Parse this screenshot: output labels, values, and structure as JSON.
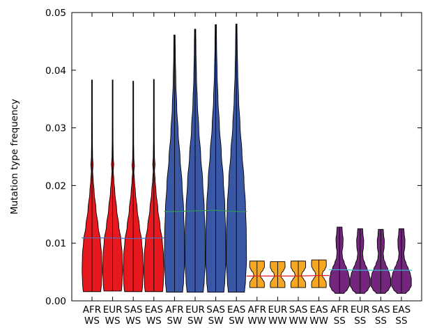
{
  "chart_data": {
    "type": "violin",
    "title": "",
    "xlabel": "",
    "ylabel": "Mutation type frequency",
    "ylim": [
      0,
      0.05
    ],
    "yticks": [
      0.0,
      0.01,
      0.02,
      0.03,
      0.04,
      0.05
    ],
    "ytick_labels": [
      "0.00",
      "0.01",
      "0.02",
      "0.03",
      "0.04",
      "0.05"
    ],
    "grid": false,
    "legend": "none",
    "groups": [
      {
        "mutation_type": "WS",
        "fill_color": "#e8191e",
        "mean_line_color": "#4a6fc4"
      },
      {
        "mutation_type": "SW",
        "fill_color": "#3a57a5",
        "mean_line_color": "#2f9a57"
      },
      {
        "mutation_type": "WW",
        "fill_color": "#f5a623",
        "mean_line_color": "#e8191e"
      },
      {
        "mutation_type": "SS",
        "fill_color": "#74257e",
        "mean_line_color": "#36b8d8"
      }
    ],
    "categories": [
      {
        "population": "AFR",
        "mutation_type": "WS",
        "group": 0,
        "min": 0.0016,
        "max": 0.0383,
        "mean": 0.0109
      },
      {
        "population": "EUR",
        "mutation_type": "WS",
        "group": 0,
        "min": 0.0017,
        "max": 0.0383,
        "mean": 0.0109
      },
      {
        "population": "SAS",
        "mutation_type": "WS",
        "group": 0,
        "min": 0.0016,
        "max": 0.0381,
        "mean": 0.0108
      },
      {
        "population": "EAS",
        "mutation_type": "WS",
        "group": 0,
        "min": 0.0016,
        "max": 0.0384,
        "mean": 0.0109
      },
      {
        "population": "AFR",
        "mutation_type": "SW",
        "group": 1,
        "min": 0.0015,
        "max": 0.0461,
        "mean": 0.0155
      },
      {
        "population": "EUR",
        "mutation_type": "SW",
        "group": 1,
        "min": 0.0015,
        "max": 0.0471,
        "mean": 0.0156
      },
      {
        "population": "SAS",
        "mutation_type": "SW",
        "group": 1,
        "min": 0.0015,
        "max": 0.0479,
        "mean": 0.0157
      },
      {
        "population": "EAS",
        "mutation_type": "SW",
        "group": 1,
        "min": 0.0015,
        "max": 0.048,
        "mean": 0.0155
      },
      {
        "population": "AFR",
        "mutation_type": "WW",
        "group": 2,
        "min": 0.0023,
        "max": 0.0069,
        "mean": 0.0043
      },
      {
        "population": "EUR",
        "mutation_type": "WW",
        "group": 2,
        "min": 0.0023,
        "max": 0.0068,
        "mean": 0.0043
      },
      {
        "population": "SAS",
        "mutation_type": "WW",
        "group": 2,
        "min": 0.0023,
        "max": 0.0069,
        "mean": 0.0043
      },
      {
        "population": "EAS",
        "mutation_type": "WW",
        "group": 2,
        "min": 0.0023,
        "max": 0.0071,
        "mean": 0.0044
      },
      {
        "population": "AFR",
        "mutation_type": "SS",
        "group": 3,
        "min": 0.0013,
        "max": 0.0128,
        "mean": 0.0054
      },
      {
        "population": "EUR",
        "mutation_type": "SS",
        "group": 3,
        "min": 0.0013,
        "max": 0.0125,
        "mean": 0.0053
      },
      {
        "population": "SAS",
        "mutation_type": "SS",
        "group": 3,
        "min": 0.0013,
        "max": 0.0124,
        "mean": 0.0053
      },
      {
        "population": "EAS",
        "mutation_type": "SS",
        "group": 3,
        "min": 0.0013,
        "max": 0.0125,
        "mean": 0.0053
      }
    ]
  }
}
